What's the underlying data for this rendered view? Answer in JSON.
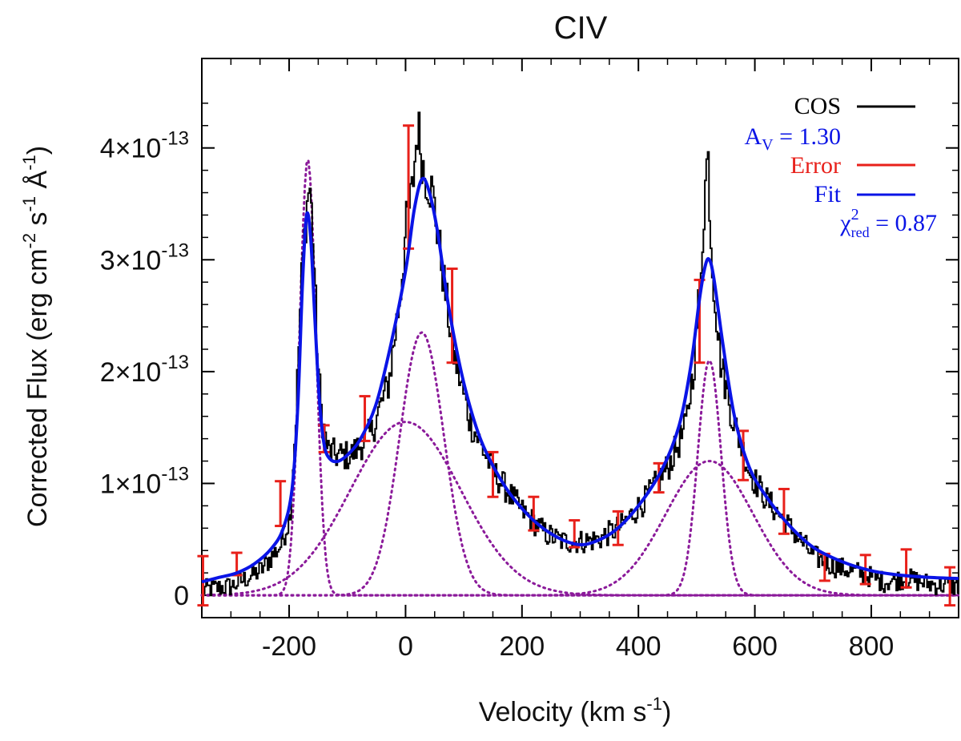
{
  "chart_data": {
    "type": "line",
    "title": "CIV",
    "xlabel": "Velocity (km s",
    "xlabel_sup": "-1",
    "xlabel_end": ")",
    "ylabel": "Corrected Flux (erg cm",
    "ylabel_sup1": "-2",
    "ylabel_mid1": " s",
    "ylabel_sup2": "-1",
    "ylabel_mid2": " Å",
    "ylabel_sup3": "-1",
    "ylabel_end": ")",
    "xlim": [
      -350,
      950
    ],
    "ylim": [
      -0.2,
      4.8
    ],
    "y_unit_exponent": -13,
    "xticks": [
      -200,
      0,
      200,
      400,
      600,
      800
    ],
    "xtick_labels": [
      "-200",
      "0",
      "200",
      "400",
      "600",
      "800"
    ],
    "yticks": [
      0,
      1,
      2,
      3,
      4
    ],
    "ytick_labels": [
      {
        "text": "0",
        "mant": "",
        "exp": ""
      },
      {
        "text": "",
        "mant": "1×10",
        "exp": "-13"
      },
      {
        "text": "",
        "mant": "2×10",
        "exp": "-13"
      },
      {
        "text": "",
        "mant": "3×10",
        "exp": "-13"
      },
      {
        "text": "",
        "mant": "4×10",
        "exp": "-13"
      }
    ],
    "legend": {
      "position": "top-right",
      "cos": "COS",
      "av_main": "A",
      "av_sub": "V",
      "av_value": " = 1.30",
      "error": "Error",
      "fit": "Fit",
      "chi_main": "χ",
      "chi_sup": "2",
      "chi_sub": "red",
      "chi_value": " = 0.87"
    },
    "colors": {
      "cos": "#000000",
      "error": "#e8201a",
      "fit": "#0a14e6",
      "components": "#8b1a9a",
      "axis": "#000000"
    },
    "cos_anchor_points": [
      [
        -350,
        0.05
      ],
      [
        -300,
        0.08
      ],
      [
        -250,
        0.22
      ],
      [
        -215,
        0.45
      ],
      [
        -200,
        0.7
      ],
      [
        -190,
        1.5
      ],
      [
        -180,
        2.8
      ],
      [
        -172,
        3.4
      ],
      [
        -166,
        3.7
      ],
      [
        -160,
        3.2
      ],
      [
        -152,
        2.1
      ],
      [
        -145,
        1.6
      ],
      [
        -135,
        1.3
      ],
      [
        -120,
        1.25
      ],
      [
        -95,
        1.25
      ],
      [
        -60,
        1.45
      ],
      [
        -30,
        1.9
      ],
      [
        -10,
        2.7
      ],
      [
        0,
        3.3
      ],
      [
        10,
        3.6
      ],
      [
        20,
        4.2
      ],
      [
        30,
        3.8
      ],
      [
        45,
        3.6
      ],
      [
        60,
        3.0
      ],
      [
        80,
        2.2
      ],
      [
        110,
        1.55
      ],
      [
        150,
        1.1
      ],
      [
        200,
        0.75
      ],
      [
        240,
        0.55
      ],
      [
        270,
        0.48
      ],
      [
        300,
        0.48
      ],
      [
        330,
        0.5
      ],
      [
        370,
        0.62
      ],
      [
        410,
        0.85
      ],
      [
        450,
        1.15
      ],
      [
        480,
        1.5
      ],
      [
        495,
        2.1
      ],
      [
        505,
        2.8
      ],
      [
        512,
        3.5
      ],
      [
        518,
        4.0
      ],
      [
        525,
        3.0
      ],
      [
        540,
        2.1
      ],
      [
        560,
        1.6
      ],
      [
        590,
        1.1
      ],
      [
        620,
        0.85
      ],
      [
        660,
        0.6
      ],
      [
        700,
        0.35
      ],
      [
        740,
        0.25
      ],
      [
        780,
        0.2
      ],
      [
        820,
        0.12
      ],
      [
        860,
        0.15
      ],
      [
        900,
        0.1
      ],
      [
        950,
        0.08
      ]
    ],
    "components": [
      {
        "center": -168,
        "amplitude": 3.9,
        "sigma": 14
      },
      {
        "center": 0,
        "amplitude": 1.55,
        "sigma": 95
      },
      {
        "center": 28,
        "amplitude": 2.35,
        "sigma": 38
      },
      {
        "center": 522,
        "amplitude": 2.1,
        "sigma": 20
      },
      {
        "center": 522,
        "amplitude": 1.2,
        "sigma": 75
      }
    ],
    "fit_points": [
      [
        -350,
        0.12
      ],
      [
        -320,
        0.16
      ],
      [
        -290,
        0.2
      ],
      [
        -260,
        0.28
      ],
      [
        -230,
        0.42
      ],
      [
        -210,
        0.6
      ],
      [
        -195,
        0.95
      ],
      [
        -185,
        1.7
      ],
      [
        -177,
        2.8
      ],
      [
        -170,
        3.4
      ],
      [
        -163,
        3.2
      ],
      [
        -156,
        2.5
      ],
      [
        -148,
        1.75
      ],
      [
        -140,
        1.35
      ],
      [
        -130,
        1.22
      ],
      [
        -115,
        1.2
      ],
      [
        -95,
        1.28
      ],
      [
        -75,
        1.42
      ],
      [
        -50,
        1.72
      ],
      [
        -25,
        2.25
      ],
      [
        0,
        2.9
      ],
      [
        15,
        3.45
      ],
      [
        28,
        3.72
      ],
      [
        40,
        3.62
      ],
      [
        55,
        3.25
      ],
      [
        75,
        2.55
      ],
      [
        100,
        1.9
      ],
      [
        130,
        1.38
      ],
      [
        170,
        0.98
      ],
      [
        210,
        0.72
      ],
      [
        250,
        0.55
      ],
      [
        290,
        0.46
      ],
      [
        320,
        0.47
      ],
      [
        360,
        0.58
      ],
      [
        400,
        0.8
      ],
      [
        440,
        1.12
      ],
      [
        470,
        1.52
      ],
      [
        490,
        2.05
      ],
      [
        505,
        2.65
      ],
      [
        515,
        2.95
      ],
      [
        522,
        3.0
      ],
      [
        530,
        2.82
      ],
      [
        545,
        2.25
      ],
      [
        565,
        1.6
      ],
      [
        590,
        1.15
      ],
      [
        620,
        0.88
      ],
      [
        660,
        0.62
      ],
      [
        700,
        0.43
      ],
      [
        750,
        0.3
      ],
      [
        800,
        0.22
      ],
      [
        850,
        0.18
      ],
      [
        900,
        0.16
      ],
      [
        950,
        0.15
      ]
    ],
    "error_bars": [
      [
        -348,
        0.13,
        0.22
      ],
      [
        -290,
        0.28,
        0.1
      ],
      [
        -215,
        0.82,
        0.2
      ],
      [
        -140,
        1.4,
        0.12
      ],
      [
        -70,
        1.58,
        0.2
      ],
      [
        5,
        3.65,
        0.55
      ],
      [
        80,
        2.5,
        0.42
      ],
      [
        150,
        1.08,
        0.2
      ],
      [
        220,
        0.73,
        0.15
      ],
      [
        290,
        0.55,
        0.12
      ],
      [
        365,
        0.6,
        0.15
      ],
      [
        435,
        1.05,
        0.13
      ],
      [
        505,
        2.45,
        0.37
      ],
      [
        580,
        1.25,
        0.22
      ],
      [
        650,
        0.75,
        0.2
      ],
      [
        720,
        0.25,
        0.12
      ],
      [
        790,
        0.23,
        0.13
      ],
      [
        860,
        0.24,
        0.17
      ],
      [
        935,
        0.08,
        0.17
      ]
    ]
  }
}
